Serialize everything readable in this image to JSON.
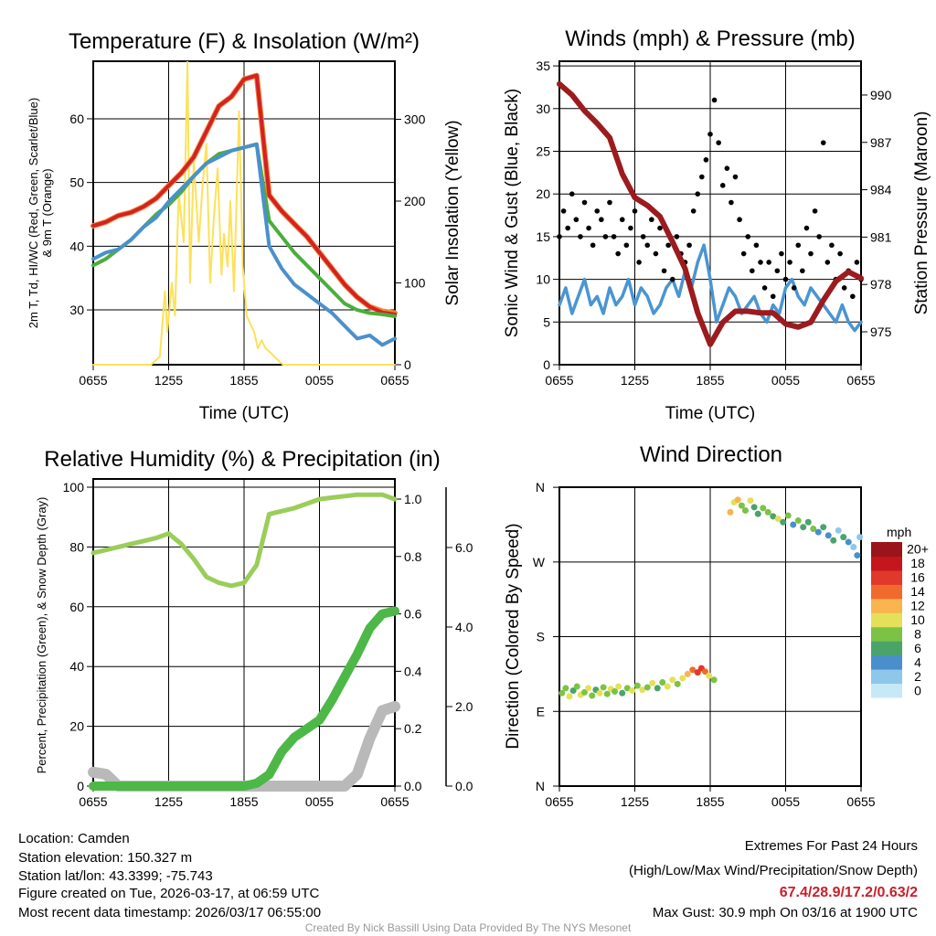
{
  "footer": {
    "location": "Location: Camden",
    "elevation": "Station elevation: 150.327 m",
    "latlon": "Station lat/lon: 43.3399; -75.743",
    "created": "Figure created on Tue, 2026-03-17, at 06:59 UTC",
    "recent": "Most recent data timestamp: 2026/03/17 06:55:00",
    "extremes_title": "Extremes For Past 24 Hours",
    "extremes_fields": "(High/Low/Max Wind/Precipitation/Snow Depth)",
    "extremes_values": "67.4/28.9/17.2/0.63/2",
    "max_gust": "Max Gust: 30.9 mph On 03/16 at 1900 UTC",
    "credit": "Created By Nick Bassill Using Data Provided By The NYS Mesonet"
  },
  "colors": {
    "temp": "#d42027",
    "temp9m": "#f08a30",
    "hiwc": "#4a90cc",
    "dew": "#4aae3c",
    "solar": "#fde15a",
    "wind": "#4a95d2",
    "gust": "#000000",
    "pressure": "#9b1b1e",
    "rh": "#9acd5a",
    "precip": "#4db848",
    "snow": "#b9b9b9"
  },
  "chart_data": [
    {
      "type": "line",
      "title": "Temperature (F) & Insolation (W/m²)",
      "xlabel": "Time (UTC)",
      "ylabel_line1": "2m T, Td, HI/WC (Red, Green, Scarlet/Blue)",
      "ylabel_line2": "& 9m T (Orange)",
      "ylabel_right": "Solar Insolation (Yellow)",
      "xticks": [
        "0655",
        "1255",
        "1855",
        "0055",
        "0655"
      ],
      "yticks_left": [
        30,
        40,
        50,
        60
      ],
      "yticks_right": [
        0,
        100,
        200,
        300
      ],
      "ylim_left": [
        21.4,
        69
      ],
      "ylim_right": [
        0,
        370
      ],
      "x_hours": "hourly from 0655 to 0655",
      "series": [
        {
          "name": "9m T",
          "color_key": "temp9m",
          "values": [
            43.2,
            43.8,
            44.8,
            45.3,
            46.2,
            47.5,
            49.5,
            51.5,
            54,
            58,
            62,
            63.5,
            66.2,
            66.8,
            48,
            45.5,
            43.5,
            41.5,
            39,
            36.5,
            34,
            32,
            30.5,
            29.8,
            29.5
          ]
        },
        {
          "name": "2m T",
          "color_key": "temp",
          "values": [
            43.2,
            43.8,
            44.8,
            45.3,
            46.2,
            47.5,
            49.5,
            51.5,
            54,
            58,
            62,
            63.5,
            66.2,
            66.8,
            48,
            45.5,
            43.5,
            41.5,
            39,
            36.5,
            34,
            32,
            30.5,
            29.6,
            29.3
          ]
        },
        {
          "name": "Td",
          "color_key": "dew",
          "values": [
            37,
            38,
            39.5,
            41,
            43,
            45,
            46.5,
            48.5,
            51,
            53,
            54.5,
            55,
            55.5,
            56,
            44,
            41.5,
            39,
            37,
            35,
            33,
            31,
            30,
            29.5,
            29.3,
            29.0
          ]
        },
        {
          "name": "HI/WC",
          "color_key": "hiwc",
          "values": [
            38,
            39,
            39.5,
            41,
            43,
            44.5,
            47,
            49,
            51,
            53,
            54,
            55,
            55.5,
            56,
            40,
            36.5,
            34,
            32.5,
            31,
            29.5,
            27.5,
            25.5,
            26,
            24.5,
            25.5
          ]
        }
      ],
      "solar": [
        [
          0,
          0
        ],
        [
          4.6,
          0
        ],
        [
          5.3,
          10
        ],
        [
          5.7,
          90
        ],
        [
          5.9,
          40
        ],
        [
          6.25,
          100
        ],
        [
          6.5,
          60
        ],
        [
          6.8,
          210
        ],
        [
          7.2,
          150
        ],
        [
          7.5,
          370
        ],
        [
          7.7,
          100
        ],
        [
          8.0,
          250
        ],
        [
          8.4,
          150
        ],
        [
          8.7,
          220
        ],
        [
          9.0,
          270
        ],
        [
          9.3,
          100
        ],
        [
          9.6,
          180
        ],
        [
          9.9,
          240
        ],
        [
          10.2,
          110
        ],
        [
          10.4,
          160
        ],
        [
          10.7,
          120
        ],
        [
          10.9,
          200
        ],
        [
          11.2,
          90
        ],
        [
          11.6,
          310
        ],
        [
          11.9,
          120
        ],
        [
          12.2,
          60
        ],
        [
          12.5,
          50
        ],
        [
          12.8,
          40
        ],
        [
          13.1,
          20
        ],
        [
          13.4,
          30
        ],
        [
          13.7,
          20
        ],
        [
          14.1,
          15
        ],
        [
          14.4,
          10
        ],
        [
          15.1,
          0
        ],
        [
          24,
          0
        ]
      ]
    },
    {
      "type": "line",
      "title": "Winds (mph) & Pressure (mb)",
      "xlabel": "Time (UTC)",
      "ylabel": "Sonic Wind & Gust (Blue, Black)",
      "ylabel_right": "Station Pressure (Maroon)",
      "xticks": [
        "0655",
        "1255",
        "1855",
        "0055",
        "0655"
      ],
      "yticks_left": [
        0,
        5,
        10,
        15,
        20,
        25,
        30,
        35
      ],
      "yticks_right": [
        975,
        978,
        981,
        984,
        987,
        990
      ],
      "ylim_left": [
        0,
        35.5
      ],
      "ylim_right": [
        972.9,
        992.1
      ],
      "wind_halfhourly": [
        7,
        9,
        6,
        8,
        10,
        7,
        8,
        6,
        9,
        7,
        8,
        10,
        7,
        9,
        8,
        6,
        7,
        9,
        10,
        8,
        11,
        9,
        12,
        14,
        10,
        5,
        7,
        9,
        8,
        6,
        7,
        8,
        6,
        5,
        7,
        6,
        9,
        10,
        8,
        7,
        9,
        8,
        7,
        6,
        5,
        7,
        5,
        4,
        5
      ],
      "gust_20min": [
        15,
        18,
        16,
        20,
        17,
        15,
        19,
        16,
        14,
        18,
        17,
        15,
        19,
        15,
        13,
        17,
        14,
        16,
        18,
        12,
        15,
        14,
        17,
        13,
        16,
        11,
        14,
        10,
        15,
        13,
        12,
        14,
        18,
        20,
        22,
        24,
        27,
        31,
        26,
        21,
        23,
        19,
        22,
        17,
        13,
        15,
        11,
        14,
        12,
        9,
        12,
        8,
        11,
        13,
        10,
        12,
        9,
        14,
        11,
        16,
        13,
        18,
        15,
        26,
        12,
        14,
        10,
        13,
        9,
        11,
        8,
        12,
        10
      ],
      "pressure_hourly": [
        990.7,
        990,
        989,
        988.2,
        987.3,
        985,
        983.5,
        983,
        982.3,
        980.7,
        979,
        976.2,
        974.2,
        975.6,
        976.3,
        976.3,
        976.2,
        976.2,
        975.5,
        975.3,
        975.6,
        977,
        978.2,
        978.8,
        978.4
      ]
    },
    {
      "type": "line",
      "title": "Relative Humidity (%) & Precipitation (in)",
      "ylabel": "Percent, Precipitation (Green), & Snow Depth (Gray)",
      "xticks": [
        "0655",
        "1255",
        "1855",
        "0055",
        "0655"
      ],
      "yticks_left": [
        0,
        20,
        40,
        60,
        80,
        100
      ],
      "yticks_precip": [
        "0.0",
        "0.2",
        "0.4",
        "0.6",
        "0.8",
        "1.0"
      ],
      "yticks_snow": [
        "0.0",
        "2.0",
        "4.0",
        "6.0"
      ],
      "ylim_left": [
        0,
        102.8
      ],
      "rh_hourly": [
        78,
        79,
        80,
        81,
        82,
        83,
        84.5,
        81,
        76,
        70,
        68,
        67,
        68,
        74,
        91,
        92,
        93,
        94.5,
        96,
        96.5,
        97,
        97.5,
        97.5,
        97.5,
        96
      ],
      "precip_hourly": [
        0,
        0,
        0,
        0,
        0,
        0,
        0,
        0,
        0,
        0,
        0,
        0,
        0,
        0.01,
        0.04,
        0.12,
        0.17,
        0.2,
        0.23,
        0.3,
        0.38,
        0.46,
        0.55,
        0.6,
        0.61
      ],
      "snow_hourly": [
        0.35,
        0.3,
        0,
        0,
        0,
        0,
        0,
        0,
        0,
        0,
        0,
        0,
        0,
        0,
        0,
        0,
        0,
        0,
        0,
        0,
        0,
        0.3,
        1.2,
        1.9,
        2.0
      ]
    },
    {
      "type": "scatter",
      "title": "Wind Direction",
      "ylabel": "Direction (Colored By Speed)",
      "xticks": [
        "0655",
        "1255",
        "1855",
        "0055",
        "0655"
      ],
      "yticks": [
        "N",
        "E",
        "S",
        "W",
        "N"
      ],
      "ylim": [
        0,
        360
      ],
      "legend_title": "mph",
      "legend_labels": [
        "0",
        "2",
        "4",
        "6",
        "8",
        "10",
        "12",
        "14",
        "16",
        "18",
        "20+"
      ],
      "legend_colors": [
        "#c6e9f7",
        "#8fc7ea",
        "#4a8fcc",
        "#4aa46a",
        "#7cc245",
        "#e5e05a",
        "#f9b44f",
        "#f06a2d",
        "#e0382b",
        "#c4161c",
        "#99141b"
      ],
      "points": [
        [
          0.2,
          112,
          7
        ],
        [
          0.5,
          118,
          8
        ],
        [
          0.8,
          108,
          9
        ],
        [
          1.1,
          115,
          6
        ],
        [
          1.4,
          120,
          8
        ],
        [
          1.7,
          110,
          10
        ],
        [
          2.0,
          113,
          7
        ],
        [
          2.3,
          118,
          9
        ],
        [
          2.6,
          109,
          8
        ],
        [
          2.9,
          116,
          6
        ],
        [
          3.2,
          112,
          9
        ],
        [
          3.5,
          119,
          8
        ],
        [
          3.8,
          111,
          7
        ],
        [
          4.1,
          117,
          10
        ],
        [
          4.4,
          114,
          8
        ],
        [
          4.7,
          120,
          9
        ],
        [
          5.0,
          112,
          6
        ],
        [
          5.4,
          118,
          8
        ],
        [
          5.8,
          115,
          9
        ],
        [
          6.2,
          121,
          7
        ],
        [
          6.6,
          116,
          10
        ],
        [
          7.0,
          119,
          8
        ],
        [
          7.4,
          124,
          9
        ],
        [
          7.8,
          118,
          6
        ],
        [
          8.2,
          125,
          8
        ],
        [
          8.6,
          120,
          10
        ],
        [
          9.0,
          128,
          9
        ],
        [
          9.4,
          123,
          7
        ],
        [
          9.8,
          130,
          10
        ],
        [
          10.2,
          135,
          12
        ],
        [
          10.6,
          140,
          14
        ],
        [
          11.0,
          137,
          15
        ],
        [
          11.3,
          142,
          16
        ],
        [
          11.6,
          138,
          14
        ],
        [
          11.9,
          133,
          9
        ],
        [
          12.3,
          128,
          7
        ],
        [
          13.6,
          330,
          11
        ],
        [
          13.9,
          342,
          10
        ],
        [
          14.2,
          345,
          12
        ],
        [
          14.5,
          338,
          8
        ],
        [
          14.8,
          332,
          7
        ],
        [
          15.2,
          344,
          9
        ],
        [
          15.5,
          336,
          6
        ],
        [
          15.8,
          328,
          5
        ],
        [
          16.2,
          335,
          7
        ],
        [
          16.6,
          330,
          8
        ],
        [
          17.0,
          325,
          6
        ],
        [
          17.4,
          322,
          9
        ],
        [
          17.8,
          318,
          5
        ],
        [
          18.2,
          326,
          7
        ],
        [
          18.6,
          315,
          4
        ],
        [
          19.0,
          320,
          8
        ],
        [
          19.4,
          312,
          6
        ],
        [
          19.8,
          318,
          5
        ],
        [
          20.2,
          310,
          7
        ],
        [
          20.6,
          306,
          4
        ],
        [
          21.0,
          312,
          6
        ],
        [
          21.4,
          302,
          4
        ],
        [
          21.8,
          296,
          5
        ],
        [
          22.2,
          308,
          2
        ],
        [
          22.6,
          300,
          6
        ],
        [
          23.0,
          294,
          3
        ],
        [
          23.4,
          288,
          2
        ],
        [
          23.7,
          278,
          4
        ],
        [
          23.9,
          300,
          2
        ]
      ]
    }
  ]
}
